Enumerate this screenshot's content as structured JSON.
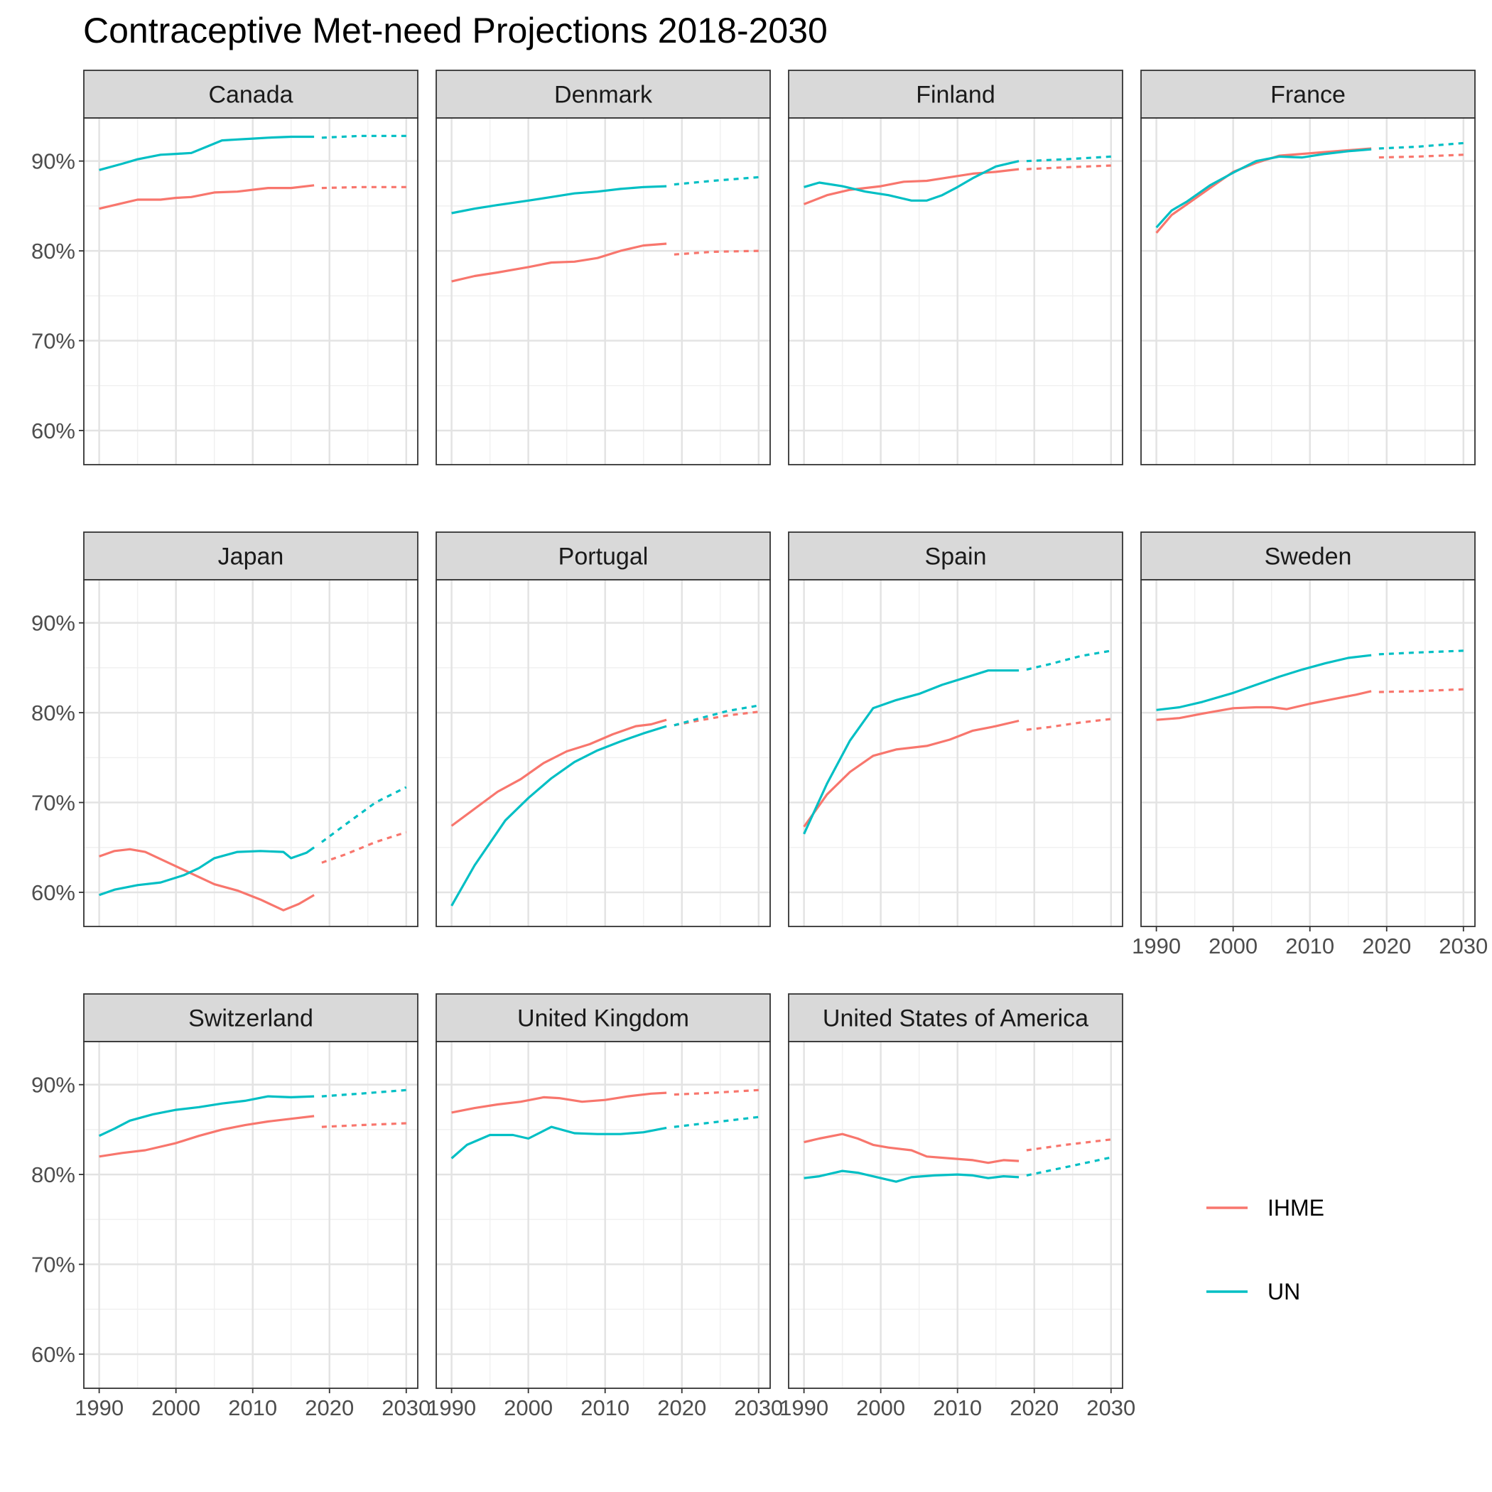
{
  "chart_data": {
    "type": "line",
    "title": "Contraceptive Met-need Projections 2018-2030",
    "xlabel": "",
    "ylabel": "",
    "xlim": [
      1988,
      2031.5
    ],
    "ylim": [
      0.562,
      0.948
    ],
    "x_ticks": [
      1990,
      2000,
      2010,
      2020,
      2030
    ],
    "x_tick_labels": [
      "1990",
      "2000",
      "2010",
      "2020",
      "2030"
    ],
    "y_ticks": [
      0.6,
      0.7,
      0.8,
      0.9
    ],
    "y_tick_labels": [
      "60%",
      "70%",
      "80%",
      "90%"
    ],
    "grid": true,
    "legend_position": "right",
    "series_colors": {
      "IHME": "#F8766D",
      "UN": "#00BFC4"
    },
    "legend": [
      "IHME",
      "UN"
    ],
    "panels": [
      {
        "country": "Canada",
        "IHME_observed": {
          "x": [
            1990,
            1993,
            1995,
            1998,
            2000,
            2002,
            2005,
            2008,
            2010,
            2012,
            2015,
            2018
          ],
          "y": [
            0.847,
            0.853,
            0.857,
            0.857,
            0.859,
            0.86,
            0.865,
            0.866,
            0.868,
            0.87,
            0.87,
            0.873
          ]
        },
        "IHME_projected": {
          "x": [
            2019,
            2024,
            2030
          ],
          "y": [
            0.87,
            0.871,
            0.871
          ]
        },
        "UN_observed": {
          "x": [
            1990,
            1993,
            1995,
            1998,
            2000,
            2002,
            2004,
            2006,
            2008,
            2010,
            2012,
            2015,
            2018
          ],
          "y": [
            0.89,
            0.897,
            0.902,
            0.907,
            0.908,
            0.909,
            0.916,
            0.923,
            0.924,
            0.925,
            0.926,
            0.927,
            0.927
          ]
        },
        "UN_projected": {
          "x": [
            2019,
            2024,
            2030
          ],
          "y": [
            0.926,
            0.928,
            0.928
          ]
        }
      },
      {
        "country": "Denmark",
        "IHME_observed": {
          "x": [
            1990,
            1993,
            1996,
            2000,
            2003,
            2006,
            2009,
            2012,
            2015,
            2018
          ],
          "y": [
            0.766,
            0.772,
            0.776,
            0.782,
            0.787,
            0.788,
            0.792,
            0.8,
            0.806,
            0.808
          ]
        },
        "IHME_projected": {
          "x": [
            2019,
            2024,
            2030
          ],
          "y": [
            0.796,
            0.799,
            0.8
          ]
        },
        "UN_observed": {
          "x": [
            1990,
            1993,
            1996,
            2000,
            2003,
            2006,
            2009,
            2012,
            2015,
            2018
          ],
          "y": [
            0.842,
            0.847,
            0.851,
            0.856,
            0.86,
            0.864,
            0.866,
            0.869,
            0.871,
            0.872
          ]
        },
        "UN_projected": {
          "x": [
            2019,
            2024,
            2030
          ],
          "y": [
            0.874,
            0.878,
            0.882
          ]
        }
      },
      {
        "country": "Finland",
        "IHME_observed": {
          "x": [
            1990,
            1993,
            1996,
            2000,
            2003,
            2006,
            2009,
            2012,
            2015,
            2018
          ],
          "y": [
            0.852,
            0.862,
            0.868,
            0.872,
            0.877,
            0.878,
            0.882,
            0.886,
            0.888,
            0.891
          ]
        },
        "IHME_projected": {
          "x": [
            2019,
            2024,
            2030
          ],
          "y": [
            0.891,
            0.893,
            0.895
          ]
        },
        "UN_observed": {
          "x": [
            1990,
            1992,
            1995,
            1998,
            2001,
            2004,
            2006,
            2008,
            2010,
            2012,
            2015,
            2018
          ],
          "y": [
            0.871,
            0.876,
            0.872,
            0.866,
            0.862,
            0.856,
            0.856,
            0.862,
            0.871,
            0.881,
            0.894,
            0.9
          ]
        },
        "UN_projected": {
          "x": [
            2019,
            2024,
            2030
          ],
          "y": [
            0.9,
            0.902,
            0.905
          ]
        }
      },
      {
        "country": "France",
        "IHME_observed": {
          "x": [
            1990,
            1992,
            1994,
            1997,
            2000,
            2003,
            2006,
            2009,
            2012,
            2015,
            2018
          ],
          "y": [
            0.82,
            0.84,
            0.852,
            0.87,
            0.888,
            0.898,
            0.906,
            0.908,
            0.91,
            0.912,
            0.914
          ]
        },
        "IHME_projected": {
          "x": [
            2019,
            2024,
            2030
          ],
          "y": [
            0.904,
            0.905,
            0.907
          ]
        },
        "UN_observed": {
          "x": [
            1990,
            1992,
            1994,
            1997,
            2000,
            2003,
            2006,
            2009,
            2012,
            2015,
            2018
          ],
          "y": [
            0.826,
            0.845,
            0.855,
            0.873,
            0.887,
            0.9,
            0.905,
            0.904,
            0.908,
            0.911,
            0.913
          ]
        },
        "UN_projected": {
          "x": [
            2019,
            2024,
            2030
          ],
          "y": [
            0.914,
            0.916,
            0.92
          ]
        }
      },
      {
        "country": "Japan",
        "IHME_observed": {
          "x": [
            1990,
            1992,
            1994,
            1996,
            1998,
            2000,
            2002,
            2005,
            2008,
            2011,
            2014,
            2016,
            2018
          ],
          "y": [
            0.64,
            0.646,
            0.648,
            0.645,
            0.637,
            0.629,
            0.621,
            0.609,
            0.602,
            0.592,
            0.58,
            0.587,
            0.597
          ]
        },
        "IHME_projected": {
          "x": [
            2019,
            2022,
            2026,
            2030
          ],
          "y": [
            0.633,
            0.642,
            0.656,
            0.667
          ]
        },
        "UN_observed": {
          "x": [
            1990,
            1992,
            1995,
            1998,
            2001,
            2003,
            2005,
            2008,
            2011,
            2014,
            2015,
            2017,
            2018
          ],
          "y": [
            0.597,
            0.603,
            0.608,
            0.611,
            0.619,
            0.627,
            0.638,
            0.645,
            0.646,
            0.645,
            0.638,
            0.644,
            0.65
          ]
        },
        "UN_projected": {
          "x": [
            2019,
            2022,
            2026,
            2030
          ],
          "y": [
            0.656,
            0.675,
            0.7,
            0.717
          ]
        }
      },
      {
        "country": "Portugal",
        "IHME_observed": {
          "x": [
            1990,
            1993,
            1996,
            1999,
            2002,
            2005,
            2008,
            2011,
            2014,
            2016,
            2018
          ],
          "y": [
            0.674,
            0.693,
            0.712,
            0.726,
            0.744,
            0.757,
            0.765,
            0.776,
            0.785,
            0.787,
            0.792
          ]
        },
        "IHME_projected": {
          "x": [
            2019,
            2022,
            2026,
            2030
          ],
          "y": [
            0.786,
            0.791,
            0.797,
            0.801
          ]
        },
        "UN_observed": {
          "x": [
            1990,
            1993,
            1997,
            2000,
            2003,
            2006,
            2009,
            2012,
            2015,
            2018
          ],
          "y": [
            0.585,
            0.63,
            0.68,
            0.705,
            0.727,
            0.745,
            0.758,
            0.768,
            0.777,
            0.785
          ]
        },
        "UN_projected": {
          "x": [
            2019,
            2022,
            2026,
            2030
          ],
          "y": [
            0.786,
            0.793,
            0.802,
            0.808
          ]
        }
      },
      {
        "country": "Spain",
        "IHME_observed": {
          "x": [
            1990,
            1993,
            1996,
            1999,
            2002,
            2006,
            2009,
            2012,
            2015,
            2018
          ],
          "y": [
            0.673,
            0.709,
            0.734,
            0.752,
            0.759,
            0.763,
            0.77,
            0.78,
            0.785,
            0.791
          ]
        },
        "IHME_projected": {
          "x": [
            2019,
            2022,
            2026,
            2030
          ],
          "y": [
            0.781,
            0.784,
            0.789,
            0.793
          ]
        },
        "UN_observed": {
          "x": [
            1990,
            1993,
            1996,
            1999,
            2002,
            2005,
            2008,
            2011,
            2014,
            2018
          ],
          "y": [
            0.665,
            0.721,
            0.769,
            0.805,
            0.814,
            0.821,
            0.831,
            0.839,
            0.847,
            0.847
          ]
        },
        "UN_projected": {
          "x": [
            2019,
            2022,
            2026,
            2030
          ],
          "y": [
            0.848,
            0.854,
            0.863,
            0.869
          ]
        }
      },
      {
        "country": "Sweden",
        "IHME_observed": {
          "x": [
            1990,
            1993,
            1996,
            2000,
            2003,
            2005,
            2007,
            2010,
            2013,
            2016,
            2018
          ],
          "y": [
            0.792,
            0.794,
            0.799,
            0.805,
            0.806,
            0.806,
            0.804,
            0.81,
            0.815,
            0.82,
            0.824
          ]
        },
        "IHME_projected": {
          "x": [
            2019,
            2024,
            2030
          ],
          "y": [
            0.823,
            0.824,
            0.826
          ]
        },
        "UN_observed": {
          "x": [
            1990,
            1993,
            1996,
            2000,
            2003,
            2006,
            2009,
            2012,
            2015,
            2018
          ],
          "y": [
            0.803,
            0.806,
            0.812,
            0.822,
            0.831,
            0.84,
            0.848,
            0.855,
            0.861,
            0.864
          ]
        },
        "UN_projected": {
          "x": [
            2019,
            2024,
            2030
          ],
          "y": [
            0.865,
            0.867,
            0.869
          ]
        }
      },
      {
        "country": "Switzerland",
        "IHME_observed": {
          "x": [
            1990,
            1993,
            1996,
            2000,
            2003,
            2006,
            2009,
            2012,
            2015,
            2018
          ],
          "y": [
            0.82,
            0.824,
            0.827,
            0.835,
            0.843,
            0.85,
            0.855,
            0.859,
            0.862,
            0.865
          ]
        },
        "IHME_projected": {
          "x": [
            2019,
            2024,
            2030
          ],
          "y": [
            0.853,
            0.855,
            0.857
          ]
        },
        "UN_observed": {
          "x": [
            1990,
            1992,
            1994,
            1997,
            2000,
            2003,
            2006,
            2009,
            2012,
            2015,
            2018
          ],
          "y": [
            0.843,
            0.851,
            0.86,
            0.867,
            0.872,
            0.875,
            0.879,
            0.882,
            0.887,
            0.886,
            0.887
          ]
        },
        "UN_projected": {
          "x": [
            2019,
            2024,
            2030
          ],
          "y": [
            0.887,
            0.89,
            0.894
          ]
        }
      },
      {
        "country": "United Kingdom",
        "IHME_observed": {
          "x": [
            1990,
            1993,
            1996,
            1999,
            2002,
            2004,
            2007,
            2010,
            2013,
            2016,
            2018
          ],
          "y": [
            0.869,
            0.874,
            0.878,
            0.881,
            0.886,
            0.885,
            0.881,
            0.883,
            0.887,
            0.89,
            0.891
          ]
        },
        "IHME_projected": {
          "x": [
            2019,
            2024,
            2030
          ],
          "y": [
            0.889,
            0.891,
            0.894
          ]
        },
        "UN_observed": {
          "x": [
            1990,
            1992,
            1995,
            1998,
            2000,
            2003,
            2006,
            2009,
            2012,
            2015,
            2018
          ],
          "y": [
            0.818,
            0.833,
            0.844,
            0.844,
            0.84,
            0.853,
            0.846,
            0.845,
            0.845,
            0.847,
            0.852
          ]
        },
        "UN_projected": {
          "x": [
            2019,
            2024,
            2030
          ],
          "y": [
            0.853,
            0.858,
            0.864
          ]
        }
      },
      {
        "country": "United States of America",
        "IHME_observed": {
          "x": [
            1990,
            1992,
            1995,
            1997,
            1999,
            2001,
            2004,
            2006,
            2009,
            2012,
            2014,
            2016,
            2018
          ],
          "y": [
            0.836,
            0.84,
            0.845,
            0.84,
            0.833,
            0.83,
            0.827,
            0.82,
            0.818,
            0.816,
            0.813,
            0.816,
            0.815
          ]
        },
        "IHME_projected": {
          "x": [
            2019,
            2024,
            2030
          ],
          "y": [
            0.827,
            0.833,
            0.839
          ]
        },
        "UN_observed": {
          "x": [
            1990,
            1992,
            1995,
            1997,
            2000,
            2002,
            2004,
            2007,
            2010,
            2012,
            2014,
            2016,
            2018
          ],
          "y": [
            0.796,
            0.798,
            0.804,
            0.802,
            0.796,
            0.792,
            0.797,
            0.799,
            0.8,
            0.799,
            0.796,
            0.798,
            0.797
          ]
        },
        "UN_projected": {
          "x": [
            2019,
            2024,
            2030
          ],
          "y": [
            0.799,
            0.808,
            0.819
          ]
        }
      }
    ]
  }
}
